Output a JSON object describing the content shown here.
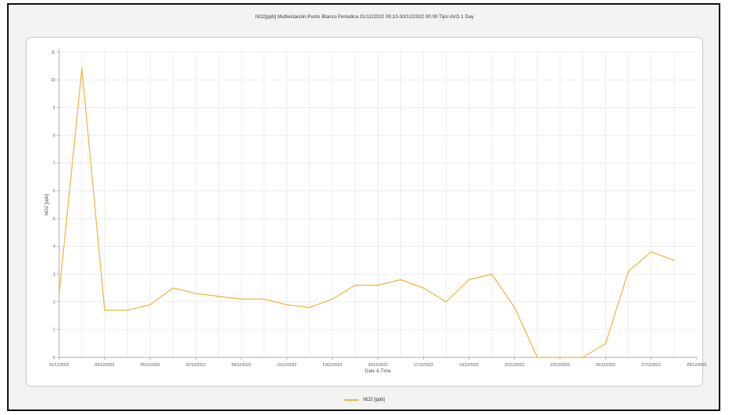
{
  "colors": {
    "series": "#f2b33d",
    "grid": "#e6e6e6",
    "axis": "#999999"
  },
  "chart_data": {
    "type": "line",
    "title": "NO2[ppb] Multiestación:Punto Blanco Periodica 01/12/2022 00:10-30/12/2022 00:00  Tipo:AVG 1 Day",
    "xlabel": "Date & Time",
    "ylabel": "NO2 [ppb]",
    "ylim": [
      0,
      11
    ],
    "yticks": [
      "0",
      "1",
      "2",
      "3",
      "4",
      "5",
      "6",
      "7",
      "8",
      "9",
      "10",
      "11"
    ],
    "xlim": [
      "01/12/2022",
      "29/12/2022"
    ],
    "xticks": [
      "01/12/2022",
      "03/12/2022",
      "05/12/2022",
      "07/12/2022",
      "09/12/2022",
      "11/12/2022",
      "13/12/2022",
      "15/12/2022",
      "17/12/2022",
      "19/12/2022",
      "21/12/2022",
      "23/12/2022",
      "25/12/2022",
      "27/12/2022",
      "29/12/2022"
    ],
    "grid": true,
    "legend_position": "bottom-center",
    "series": [
      {
        "name": "NO2 [ppb]",
        "x": [
          "01/12/2022",
          "02/12/2022",
          "03/12/2022",
          "04/12/2022",
          "05/12/2022",
          "06/12/2022",
          "07/12/2022",
          "08/12/2022",
          "09/12/2022",
          "10/12/2022",
          "11/12/2022",
          "12/12/2022",
          "13/12/2022",
          "14/12/2022",
          "15/12/2022",
          "16/12/2022",
          "17/12/2022",
          "18/12/2022",
          "19/12/2022",
          "20/12/2022",
          "21/12/2022",
          "22/12/2022",
          "23/12/2022",
          "24/12/2022",
          "25/12/2022",
          "26/12/2022",
          "27/12/2022",
          "28/12/2022"
        ],
        "values": [
          2.3,
          10.4,
          1.7,
          1.7,
          1.9,
          2.5,
          2.3,
          2.2,
          2.1,
          2.1,
          1.9,
          1.8,
          2.1,
          2.6,
          2.6,
          2.8,
          2.5,
          2.0,
          2.8,
          3.0,
          1.8,
          0.0,
          0.0,
          0.0,
          0.5,
          3.1,
          3.8,
          3.5
        ]
      }
    ]
  }
}
